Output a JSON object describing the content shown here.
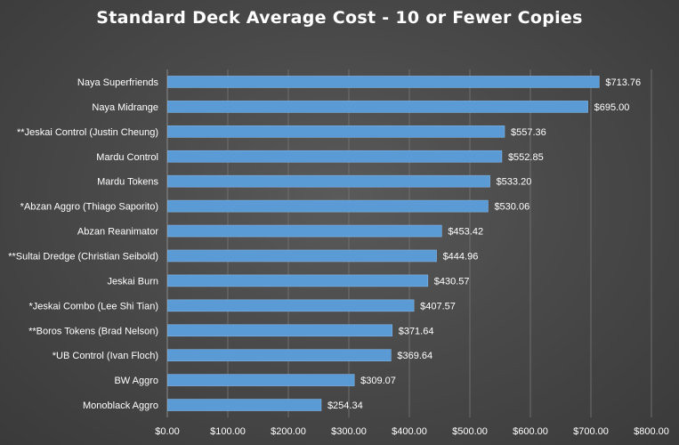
{
  "chart_data": {
    "type": "bar",
    "orientation": "horizontal",
    "title": "Standard Deck Average Cost - 10 or Fewer Copies",
    "xlabel": "",
    "ylabel": "",
    "xlim": [
      0,
      800
    ],
    "grid": true,
    "legend": "none",
    "bar_color": "#5b9bd5",
    "categories": [
      "Naya Superfriends",
      "Naya Midrange",
      "**Jeskai Control (Justin Cheung)",
      "Mardu Control",
      "Mardu Tokens",
      "*Abzan Aggro (Thiago Saporito)",
      "Abzan Reanimator",
      "**Sultai Dredge (Christian Seibold)",
      "Jeskai Burn",
      "*Jeskai Combo (Lee Shi Tian)",
      "**Boros Tokens (Brad Nelson)",
      "*UB Control (Ivan Floch)",
      "BW Aggro",
      "Monoblack Aggro"
    ],
    "values": [
      713.76,
      695.0,
      557.36,
      552.85,
      533.2,
      530.06,
      453.42,
      444.96,
      430.57,
      407.57,
      371.64,
      369.64,
      309.07,
      254.34
    ],
    "value_labels": [
      "$713.76",
      "$695.00",
      "$557.36",
      "$552.85",
      "$533.20",
      "$530.06",
      "$453.42",
      "$444.96",
      "$430.57",
      "$407.57",
      "$371.64",
      "$369.64",
      "$309.07",
      "$254.34"
    ],
    "x_ticks": [
      0,
      100,
      200,
      300,
      400,
      500,
      600,
      700,
      800
    ],
    "x_tick_labels": [
      "$0.00",
      "$100.00",
      "$200.00",
      "$300.00",
      "$400.00",
      "$500.00",
      "$600.00",
      "$700.00",
      "$800.00"
    ]
  }
}
